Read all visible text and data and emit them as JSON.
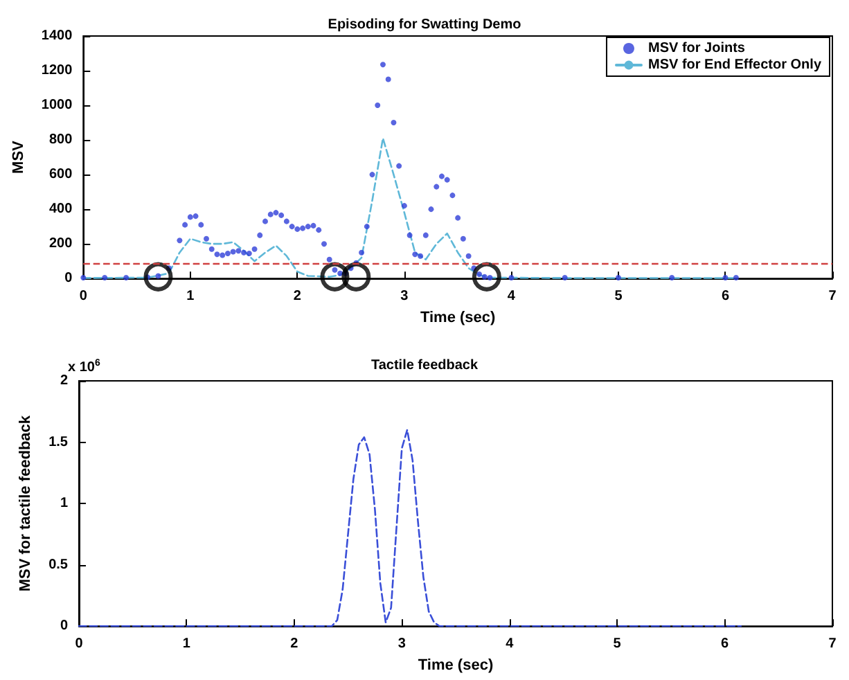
{
  "chart_data": [
    {
      "type": "line",
      "title": "Episoding for Swatting Demo",
      "xlabel": "Time (sec)",
      "ylabel": "MSV",
      "xlim": [
        0,
        7
      ],
      "xticks": [
        0,
        1,
        2,
        3,
        4,
        5,
        6,
        7
      ],
      "ylim": [
        0,
        1400
      ],
      "yticks": [
        0,
        200,
        400,
        600,
        800,
        1000,
        1200,
        1400
      ],
      "grid": false,
      "legend": "top right",
      "series": [
        {
          "name": "MSV for Joints",
          "type": "scatter",
          "marker": "circle",
          "color": "#2f3fd8",
          "x": [
            0,
            0.2,
            0.4,
            0.6,
            0.7,
            0.8,
            0.9,
            0.95,
            1.0,
            1.05,
            1.1,
            1.15,
            1.2,
            1.25,
            1.3,
            1.35,
            1.4,
            1.45,
            1.5,
            1.55,
            1.6,
            1.65,
            1.7,
            1.75,
            1.8,
            1.85,
            1.9,
            1.95,
            2.0,
            2.05,
            2.1,
            2.15,
            2.2,
            2.25,
            2.3,
            2.35,
            2.4,
            2.45,
            2.5,
            2.55,
            2.6,
            2.65,
            2.7,
            2.75,
            2.8,
            2.85,
            2.9,
            2.95,
            3.0,
            3.05,
            3.1,
            3.15,
            3.2,
            3.25,
            3.3,
            3.35,
            3.4,
            3.45,
            3.5,
            3.55,
            3.6,
            3.65,
            3.7,
            3.75,
            3.8,
            4.0,
            4.5,
            5.0,
            5.5,
            6.0,
            6.1
          ],
          "values": [
            5,
            5,
            5,
            8,
            15,
            60,
            220,
            310,
            355,
            360,
            310,
            230,
            170,
            140,
            135,
            145,
            155,
            160,
            150,
            145,
            170,
            250,
            330,
            370,
            380,
            365,
            330,
            300,
            285,
            290,
            300,
            305,
            280,
            200,
            110,
            50,
            30,
            30,
            60,
            90,
            150,
            300,
            600,
            1000,
            1235,
            1150,
            900,
            650,
            420,
            250,
            140,
            130,
            250,
            400,
            530,
            590,
            570,
            480,
            350,
            230,
            130,
            60,
            25,
            10,
            5,
            5,
            5,
            5,
            5,
            5,
            5
          ]
        },
        {
          "name": "MSV for End Effector Only",
          "line_style": "dashed",
          "color": "#5fb8d8",
          "x": [
            0,
            0.6,
            0.8,
            0.9,
            1.0,
            1.1,
            1.2,
            1.3,
            1.4,
            1.5,
            1.6,
            1.7,
            1.8,
            1.9,
            2.0,
            2.1,
            2.3,
            2.4,
            2.5,
            2.6,
            2.7,
            2.8,
            2.9,
            3.0,
            3.1,
            3.2,
            3.3,
            3.4,
            3.5,
            3.6,
            3.7,
            3.8,
            4.5,
            6.1
          ],
          "values": [
            3,
            5,
            30,
            150,
            230,
            210,
            200,
            200,
            210,
            160,
            100,
            150,
            190,
            130,
            40,
            15,
            10,
            20,
            60,
            120,
            450,
            810,
            600,
            380,
            150,
            110,
            200,
            260,
            150,
            60,
            20,
            5,
            3,
            3
          ]
        },
        {
          "type": "scatter",
          "marker": "circle",
          "color": "#000000",
          "x": [
            0.7,
            2.35,
            2.55,
            3.77
          ],
          "values": [
            10,
            10,
            10,
            10
          ]
        }
      ],
      "ref_lines": [
        {
          "axis": "y",
          "value": 85,
          "color": "#d04040",
          "line_style": "dashed"
        }
      ]
    },
    {
      "type": "line",
      "title": "Tactile feedback",
      "xlabel": "Time (sec)",
      "ylabel": "MSV for tactile feedback",
      "annotations": [
        "x 10$^{6}$"
      ],
      "xlim": [
        0,
        7
      ],
      "xticks": [
        0,
        1,
        2,
        3,
        4,
        5,
        6,
        7
      ],
      "ylim": [
        0,
        2
      ],
      "yticks": [
        0,
        0.5,
        1,
        1.5,
        2
      ],
      "grid": false,
      "series": [
        {
          "line_style": "dashed",
          "color": "#3a4fd8",
          "x": [
            0,
            1.9,
            2.35,
            2.4,
            2.45,
            2.5,
            2.55,
            2.6,
            2.65,
            2.7,
            2.75,
            2.8,
            2.85,
            2.9,
            2.95,
            3.0,
            3.05,
            3.1,
            3.15,
            3.2,
            3.25,
            3.3,
            3.35,
            4,
            6.15
          ],
          "values": [
            0,
            0,
            0,
            0.05,
            0.3,
            0.75,
            1.2,
            1.48,
            1.54,
            1.4,
            0.95,
            0.35,
            0.03,
            0.15,
            0.8,
            1.45,
            1.6,
            1.35,
            0.85,
            0.4,
            0.12,
            0.03,
            0,
            0,
            0
          ]
        }
      ]
    }
  ]
}
